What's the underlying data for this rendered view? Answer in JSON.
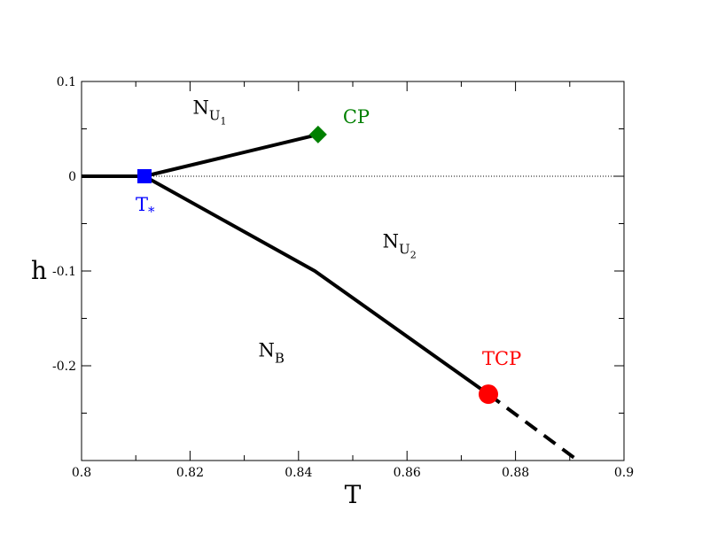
{
  "chart_data": {
    "type": "line",
    "title": "",
    "xlabel": "T",
    "ylabel": "h",
    "xlim": [
      0.8,
      0.9
    ],
    "ylim": [
      -0.3,
      0.1
    ],
    "x_major_ticks": [
      0.8,
      0.82,
      0.84,
      0.86,
      0.88,
      0.9
    ],
    "x_minor_ticks": [
      0.81,
      0.83,
      0.85,
      0.87,
      0.89
    ],
    "y_major_ticks": [
      -0.2,
      -0.1,
      0,
      0.1
    ],
    "y_minor_ticks": [
      -0.25,
      -0.15,
      -0.05,
      0.05
    ],
    "x_tick_labels": [
      "0.8",
      "0.82",
      "0.84",
      "0.86",
      "0.88",
      "0.9"
    ],
    "y_tick_labels": [
      "-0.2",
      "-0.1",
      "0",
      "0.1"
    ],
    "grid": false,
    "legend": "none",
    "reference_line": {
      "y": 0,
      "style": "dotted"
    },
    "series": [
      {
        "style": "solid",
        "x": [
          0.8,
          0.8116
        ],
        "y": [
          0,
          0
        ]
      },
      {
        "style": "solid",
        "x": [
          0.8116,
          0.8436
        ],
        "y": [
          0,
          0.044
        ]
      },
      {
        "style": "solid",
        "x": [
          0.8116,
          0.843,
          0.875
        ],
        "y": [
          0,
          -0.1,
          -0.23
        ]
      },
      {
        "style": "dashed",
        "x": [
          0.875,
          0.8915
        ],
        "y": [
          -0.23,
          -0.3
        ]
      }
    ],
    "points": [
      {
        "x": 0.8116,
        "y": 0,
        "marker": "square",
        "color": "#0000ff",
        "label": "T*"
      },
      {
        "x": 0.8436,
        "y": 0.044,
        "marker": "diamond",
        "color": "#008000",
        "label": "CP"
      },
      {
        "x": 0.875,
        "y": -0.23,
        "marker": "circle",
        "color": "#ff0000",
        "label": "TCP"
      }
    ],
    "annotations": [
      {
        "text": "N",
        "sub": "U",
        "subsub": "1",
        "x": 0.8205,
        "y": 0.066,
        "color": "#000000"
      },
      {
        "text": "N",
        "sub": "U",
        "subsub": "2",
        "x": 0.8555,
        "y": -0.075,
        "color": "#000000"
      },
      {
        "text": "N",
        "sub": "B",
        "x": 0.8326,
        "y": -0.19,
        "color": "#000000"
      }
    ]
  }
}
